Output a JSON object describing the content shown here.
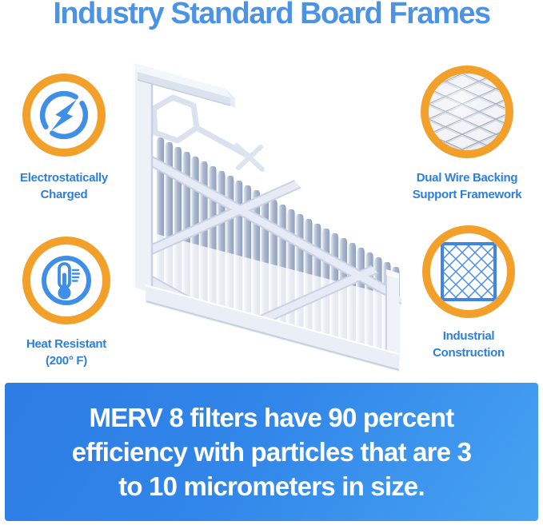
{
  "title": "Industry Standard Board Frames",
  "features": [
    {
      "name": "electrostatically-charged",
      "icon": "lightning-icon",
      "line1": "Electrostatically",
      "line2": "Charged"
    },
    {
      "name": "dual-wire-backing",
      "icon": "wire-mesh-icon",
      "line1": "Dual Wire Backing",
      "line2": "Support Framework"
    },
    {
      "name": "heat-resistant",
      "icon": "thermometer-icon",
      "line1": "Heat Resistant",
      "line2": "(200° F)"
    },
    {
      "name": "industrial-construction",
      "icon": "lattice-grid-icon",
      "line1": "Industrial",
      "line2": "Construction"
    }
  ],
  "banner": {
    "line1": "MERV 8 filters have 90 percent",
    "line2": "efficiency with particles that are 3",
    "line3": "to 10 micrometers in size."
  },
  "illustration": {
    "label": "pleated-air-filter-with-board-frame"
  },
  "colors": {
    "title_blue": "#4a93e6",
    "label_blue": "#2e7fd9",
    "ring_orange": "#f2a02a",
    "icon_blue": "#3f8ee8",
    "banner_gradient_start": "#2e7ce4",
    "banner_gradient_end": "#47a2f1",
    "banner_text": "#ffffff",
    "filter_frame": "#edf1f8",
    "filter_pleat": "#a9b6cd"
  }
}
